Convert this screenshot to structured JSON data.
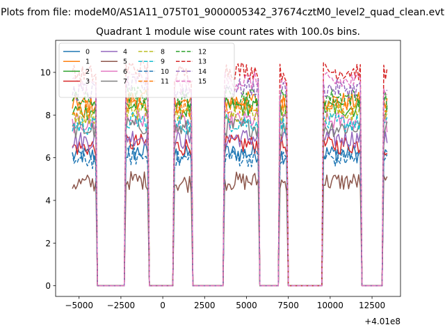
{
  "chart_data": {
    "type": "line",
    "suptitle": "Plots from file: modeM0/AS1A11_075T01_9000005342_37674cztM0_level2_quad_clean.evt",
    "title": "Quadrant 1 module wise count rates with 100.0s bins.",
    "xlabel": "",
    "ylabel": "",
    "x_offset_label": "+4.01e8",
    "xlim": [
      -6400,
      14200
    ],
    "ylim": [
      -0.5,
      11.5
    ],
    "x_ticks": [
      -5000,
      -2500,
      0,
      2500,
      5000,
      7500,
      10000,
      12500
    ],
    "x_tick_labels": [
      "−5000",
      "−2500",
      "0",
      "2500",
      "5000",
      "7500",
      "10000",
      "12500"
    ],
    "y_ticks": [
      0,
      2,
      4,
      6,
      8,
      10
    ],
    "y_tick_labels": [
      "0",
      "2",
      "4",
      "6",
      "8",
      "10"
    ],
    "grid": false,
    "legend": {
      "location": "upper-left",
      "columns": 4
    },
    "bin_size_s": 100,
    "on_intervals": [
      [
        -5400,
        -4000
      ],
      [
        -2200,
        -900
      ],
      [
        700,
        1700
      ],
      [
        3700,
        5700
      ],
      [
        7000,
        7400
      ],
      [
        9600,
        11800
      ],
      [
        13200,
        13450
      ]
    ],
    "series": [
      {
        "name": "0",
        "style": "solid",
        "color": "#1f77b4",
        "level": 6.1
      },
      {
        "name": "1",
        "style": "solid",
        "color": "#ff7f0e",
        "level": 8.5
      },
      {
        "name": "2",
        "style": "solid",
        "color": "#2ca02c",
        "level": 8.2
      },
      {
        "name": "3",
        "style": "solid",
        "color": "#d62728",
        "level": 6.5
      },
      {
        "name": "4",
        "style": "solid",
        "color": "#9467bd",
        "level": 6.8
      },
      {
        "name": "5",
        "style": "solid",
        "color": "#8c564b",
        "level": 4.8
      },
      {
        "name": "6",
        "style": "solid",
        "color": "#e377c2",
        "level": 7.6
      },
      {
        "name": "7",
        "style": "solid",
        "color": "#7f7f7f",
        "level": 7.3
      },
      {
        "name": "8",
        "style": "dashed",
        "color": "#bcbd22",
        "level": 8.0
      },
      {
        "name": "9",
        "style": "dashed",
        "color": "#17becf",
        "level": 7.5
      },
      {
        "name": "10",
        "style": "dashed",
        "color": "#1f77b4",
        "level": 5.9
      },
      {
        "name": "11",
        "style": "dashed",
        "color": "#ff7f0e",
        "level": 8.3
      },
      {
        "name": "12",
        "style": "dashed",
        "color": "#2ca02c",
        "level": 8.7
      },
      {
        "name": "13",
        "style": "dashed",
        "color": "#d62728",
        "level": 9.9
      },
      {
        "name": "14",
        "style": "dashed",
        "color": "#9467bd",
        "level": 9.1
      },
      {
        "name": "15",
        "style": "dashed",
        "color": "#e377c2",
        "level": 9.4
      }
    ]
  }
}
